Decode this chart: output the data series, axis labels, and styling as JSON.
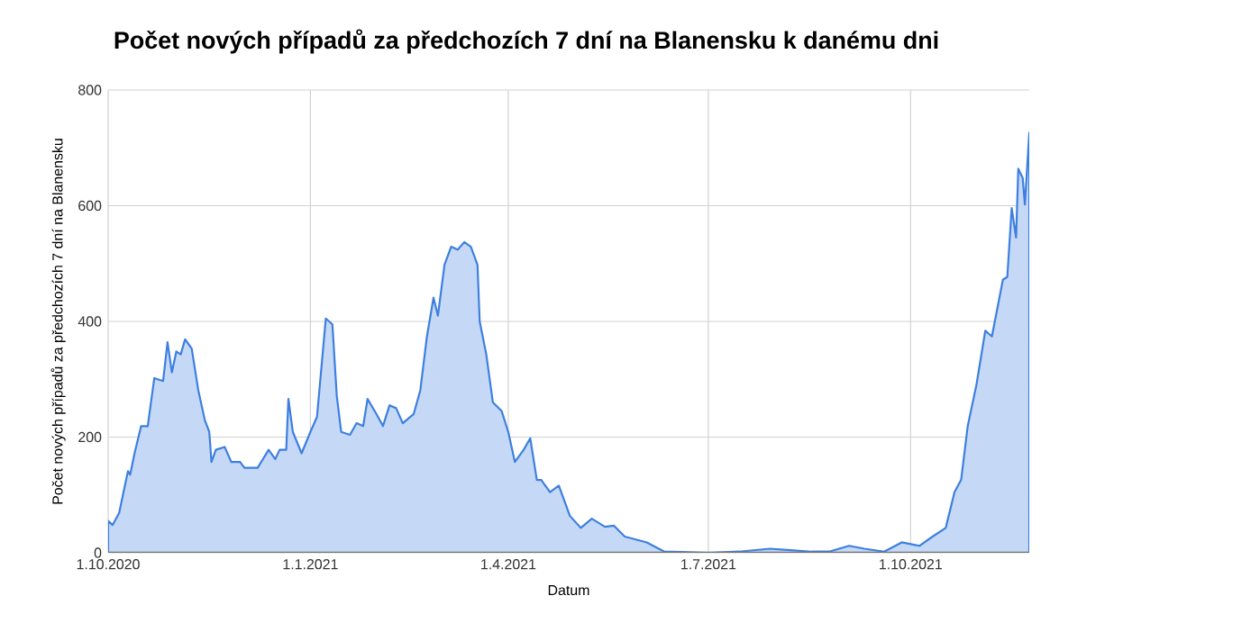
{
  "chart_data": {
    "type": "area",
    "title": "Počet nových případů za předchozích 7 dní na Blanensku k danému dni",
    "xlabel": "Datum",
    "ylabel": "Počet nových případů za předchozích 7 dní na Blanensku",
    "color": "#3d7fe0",
    "grid": true,
    "xlim": [
      "2020-10-01",
      "2021-11-24"
    ],
    "ylim": [
      0,
      800
    ],
    "yticks": [
      0,
      200,
      400,
      600,
      800
    ],
    "xticks": [
      {
        "value": "2020-10-01",
        "label": "1.10.2020"
      },
      {
        "value": "2021-01-01",
        "label": "1.1.2021"
      },
      {
        "value": "2021-04-01",
        "label": "1.4.2021"
      },
      {
        "value": "2021-07-01",
        "label": "1.7.2021"
      },
      {
        "value": "2021-10-01",
        "label": "1.10.2021"
      }
    ],
    "x": [
      "2020-10-01",
      "2020-10-03",
      "2020-10-06",
      "2020-10-08",
      "2020-10-10",
      "2020-10-11",
      "2020-10-13",
      "2020-10-16",
      "2020-10-19",
      "2020-10-22",
      "2020-10-26",
      "2020-10-28",
      "2020-10-30",
      "2020-11-01",
      "2020-11-03",
      "2020-11-05",
      "2020-11-08",
      "2020-11-11",
      "2020-11-14",
      "2020-11-16",
      "2020-11-17",
      "2020-11-19",
      "2020-11-23",
      "2020-11-26",
      "2020-11-30",
      "2020-12-02",
      "2020-12-08",
      "2020-12-13",
      "2020-12-16",
      "2020-12-18",
      "2020-12-21",
      "2020-12-22",
      "2020-12-24",
      "2020-12-28",
      "2021-01-01",
      "2021-01-04",
      "2021-01-08",
      "2021-01-11",
      "2021-01-13",
      "2021-01-15",
      "2021-01-19",
      "2021-01-22",
      "2021-01-25",
      "2021-01-27",
      "2021-01-31",
      "2021-02-03",
      "2021-02-06",
      "2021-02-09",
      "2021-02-12",
      "2021-02-17",
      "2021-02-20",
      "2021-02-23",
      "2021-02-26",
      "2021-02-28",
      "2021-03-03",
      "2021-03-06",
      "2021-03-09",
      "2021-03-12",
      "2021-03-15",
      "2021-03-18",
      "2021-03-19",
      "2021-03-22",
      "2021-03-25",
      "2021-03-29",
      "2021-04-01",
      "2021-04-04",
      "2021-04-08",
      "2021-04-11",
      "2021-04-14",
      "2021-04-16",
      "2021-04-20",
      "2021-04-24",
      "2021-04-29",
      "2021-05-04",
      "2021-05-09",
      "2021-05-15",
      "2021-05-19",
      "2021-05-24",
      "2021-06-03",
      "2021-06-11",
      "2021-07-01",
      "2021-07-15",
      "2021-07-29",
      "2021-08-06",
      "2021-08-17",
      "2021-08-25",
      "2021-09-03",
      "2021-09-10",
      "2021-09-19",
      "2021-09-27",
      "2021-10-05",
      "2021-10-11",
      "2021-10-17",
      "2021-10-21",
      "2021-10-24",
      "2021-10-27",
      "2021-10-31",
      "2021-11-04",
      "2021-11-07",
      "2021-11-12",
      "2021-11-14",
      "2021-11-16",
      "2021-11-18",
      "2021-11-19",
      "2021-11-21",
      "2021-11-22",
      "2021-11-24"
    ],
    "values": [
      55,
      48,
      69,
      105,
      141,
      135,
      172,
      219,
      219,
      302,
      297,
      364,
      312,
      348,
      343,
      369,
      353,
      281,
      229,
      209,
      157,
      178,
      183,
      157,
      157,
      147,
      147,
      178,
      162,
      178,
      178,
      266,
      209,
      172,
      209,
      235,
      405,
      395,
      271,
      209,
      204,
      224,
      219,
      266,
      240,
      219,
      255,
      250,
      224,
      240,
      281,
      374,
      441,
      410,
      498,
      529,
      524,
      537,
      529,
      498,
      400,
      343,
      260,
      245,
      209,
      157,
      178,
      198,
      126,
      126,
      105,
      116,
      64,
      43,
      59,
      45,
      47,
      28,
      18,
      2,
      0,
      2,
      7,
      5,
      2,
      2,
      12,
      7,
      2,
      18,
      12,
      28,
      43,
      105,
      126,
      219,
      291,
      384,
      374,
      472,
      477,
      596,
      545,
      664,
      648,
      602,
      726
    ]
  }
}
